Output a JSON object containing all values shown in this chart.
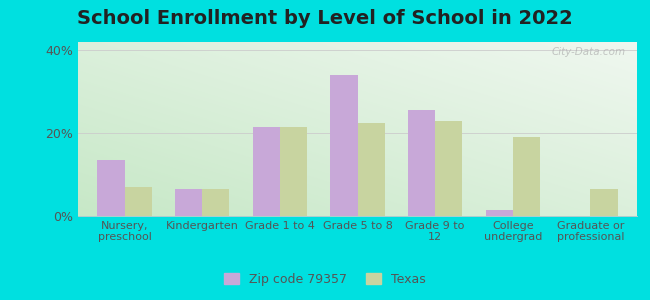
{
  "title": "School Enrollment by Level of School in 2022",
  "categories": [
    "Nursery,\npreschool",
    "Kindergarten",
    "Grade 1 to 4",
    "Grade 5 to 8",
    "Grade 9 to\n12",
    "College\nundergrad",
    "Graduate or\nprofessional"
  ],
  "zip_values": [
    13.5,
    6.5,
    21.5,
    34.0,
    25.5,
    1.5,
    0.0
  ],
  "texas_values": [
    7.0,
    6.5,
    21.5,
    22.5,
    23.0,
    19.0,
    6.5
  ],
  "zip_color": "#c8a8d8",
  "texas_color": "#c8d4a0",
  "background_outer": "#00e0e0",
  "ylim": [
    0,
    42
  ],
  "yticks": [
    0,
    20,
    40
  ],
  "ytick_labels": [
    "0%",
    "20%",
    "40%"
  ],
  "bar_width": 0.35,
  "legend_zip": "Zip code 79357",
  "legend_texas": "Texas",
  "watermark": "City-Data.com",
  "gradient_colors": [
    "#c8e8c8",
    "#f0f8ee",
    "#ffffff"
  ],
  "grid_color": "#cccccc",
  "tick_color": "#555555",
  "title_fontsize": 14,
  "axis_fontsize": 8
}
